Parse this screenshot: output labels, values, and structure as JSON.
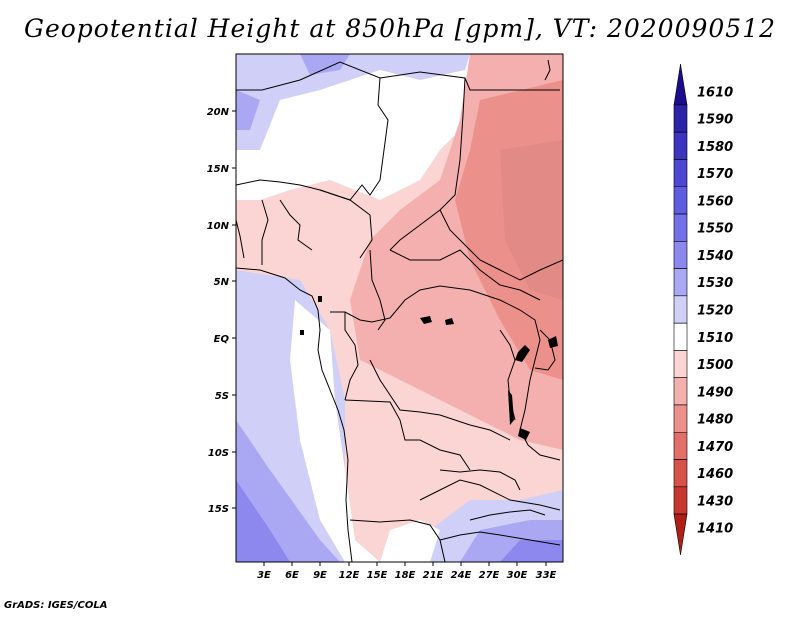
{
  "title": "Geopotential Height at 850hPa [gpm], VT: 2020090512",
  "footer": "GrADS: IGES/COLA",
  "lon_labels": [
    "3E",
    "6E",
    "9E",
    "12E",
    "15E",
    "18E",
    "21E",
    "24E",
    "27E",
    "30E",
    "33E"
  ],
  "lat_labels": [
    "20N",
    "15N",
    "10N",
    "5N",
    "EQ",
    "5S",
    "10S",
    "15S"
  ],
  "colorbar": {
    "levels": [
      "1610",
      "1590",
      "1580",
      "1570",
      "1560",
      "1550",
      "1540",
      "1530",
      "1520",
      "1510",
      "1500",
      "1490",
      "1480",
      "1470",
      "1460",
      "1430",
      "1410"
    ],
    "colors": [
      "#1a0e8f",
      "#2a24a8",
      "#3b35c0",
      "#4c48d4",
      "#5e5ce0",
      "#7470e8",
      "#8c88ee",
      "#aaa8f2",
      "#cfcff8",
      "#ffffff",
      "#fbd4d4",
      "#f4b0ae",
      "#ec908c",
      "#e27068",
      "#d8524c",
      "#c83630",
      "#b01e18"
    ]
  }
}
